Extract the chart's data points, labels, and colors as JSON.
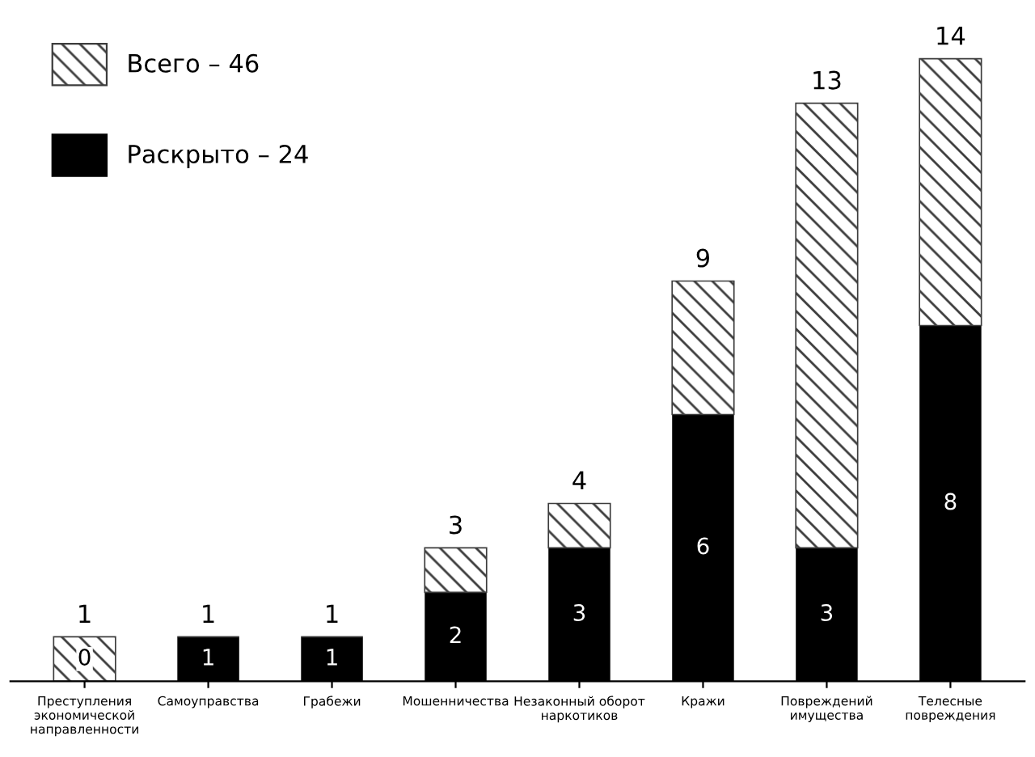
{
  "chart_data": {
    "type": "bar",
    "stacked": true,
    "categories": [
      "Преступления\nэкономической\nнаправленности",
      "Самоуправства",
      "Грабежи",
      "Мошенничества",
      "Незаконный оборот\nнаркотиков",
      "Кражи",
      "Повреждений\nимущества",
      "Телесные\nповреждения"
    ],
    "series": [
      {
        "name": "Раскрыто – 24",
        "color": "#000000",
        "values": [
          0,
          1,
          1,
          2,
          3,
          6,
          3,
          8
        ],
        "value_labels": [
          "0",
          "1",
          "1",
          "2",
          "3",
          "6",
          "3",
          "8"
        ]
      },
      {
        "name": "Всего – 46",
        "color": "#3c3c3c",
        "values": [
          1,
          0,
          0,
          1,
          1,
          3,
          10,
          6
        ]
      }
    ],
    "totals": [
      "1",
      "1",
      "1",
      "3",
      "4",
      "9",
      "13",
      "14"
    ],
    "tick_labels": "x",
    "grid": false,
    "legend": "top left"
  }
}
